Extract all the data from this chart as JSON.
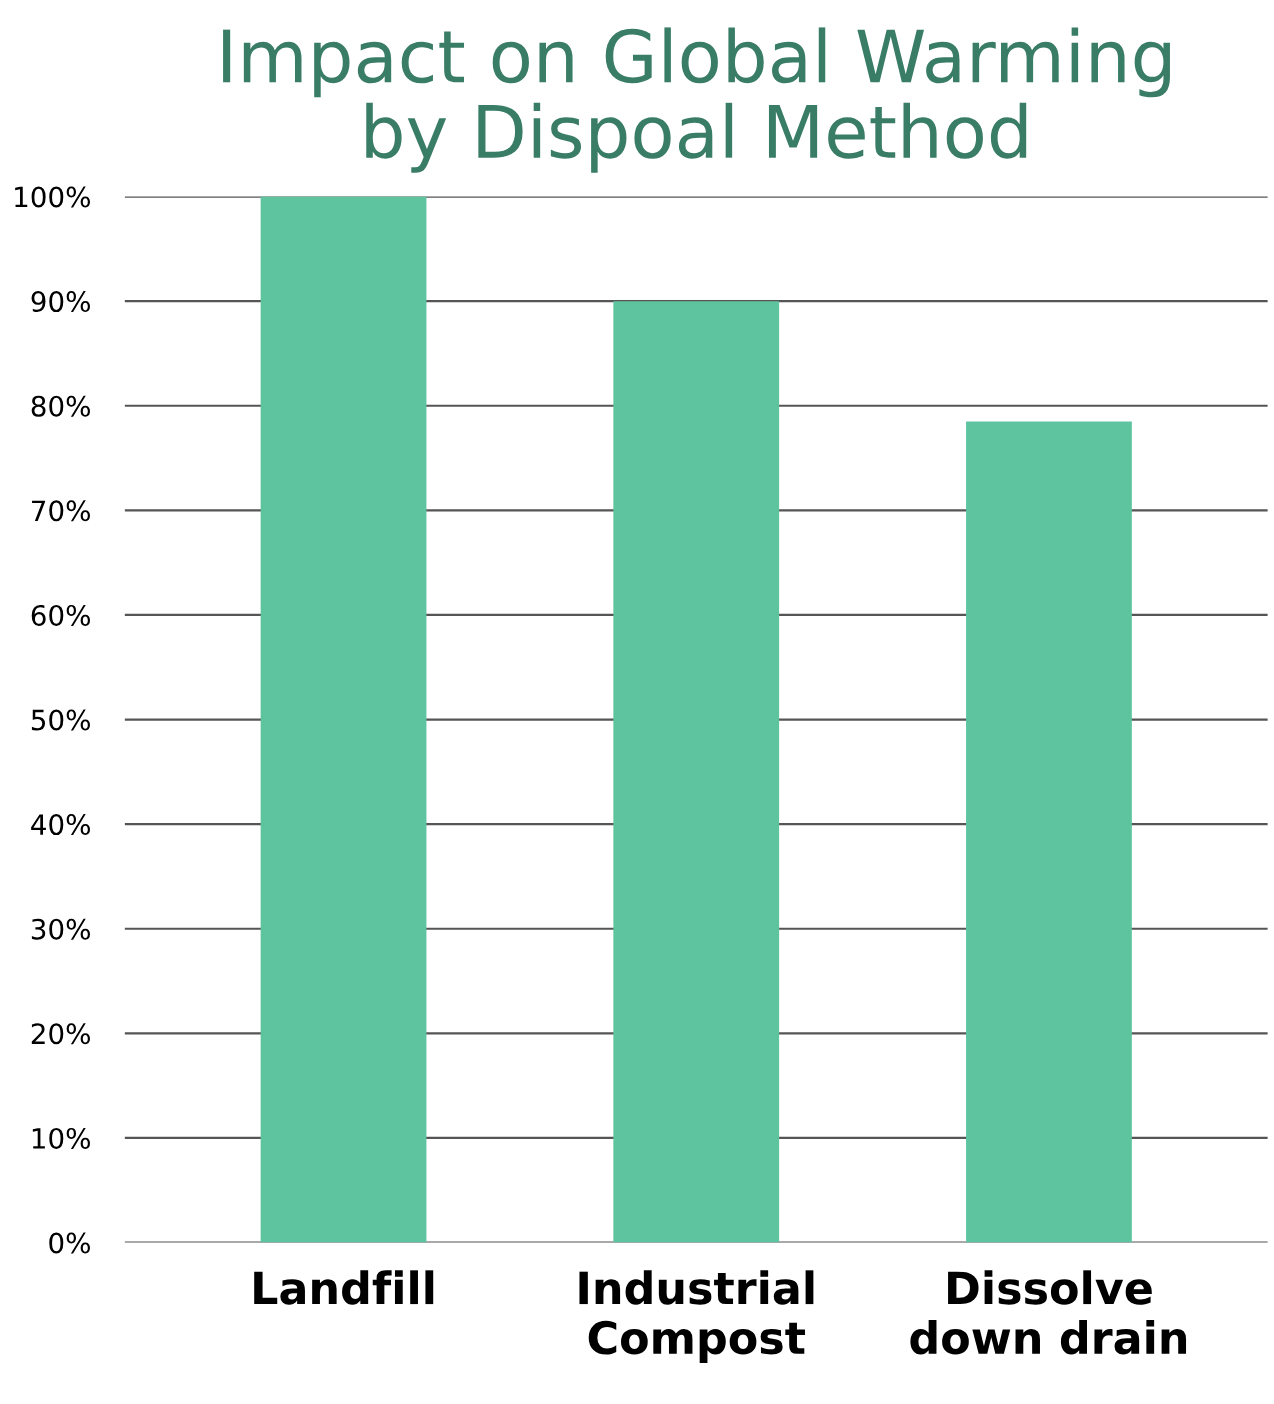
{
  "chart_data": {
    "type": "bar",
    "title": "Impact on Global Warming\nby Dispoal Method",
    "categories": [
      "Landfill",
      "Industrial\nCompost",
      "Dissolve\ndown drain"
    ],
    "values": [
      100,
      90,
      78.5
    ],
    "color": "#5ec4a0",
    "ylim": [
      0,
      100
    ],
    "yticks": [
      {
        "value": 0,
        "label": "0%"
      },
      {
        "value": 10,
        "label": "10%"
      },
      {
        "value": 20,
        "label": "20%"
      },
      {
        "value": 30,
        "label": "30%"
      },
      {
        "value": 40,
        "label": "40%"
      },
      {
        "value": 50,
        "label": "50%"
      },
      {
        "value": 60,
        "label": "60%"
      },
      {
        "value": 70,
        "label": "70%"
      },
      {
        "value": 80,
        "label": "80%"
      },
      {
        "value": 90,
        "label": "90%"
      },
      {
        "value": 100,
        "label": "100%"
      }
    ],
    "grid": "y"
  }
}
